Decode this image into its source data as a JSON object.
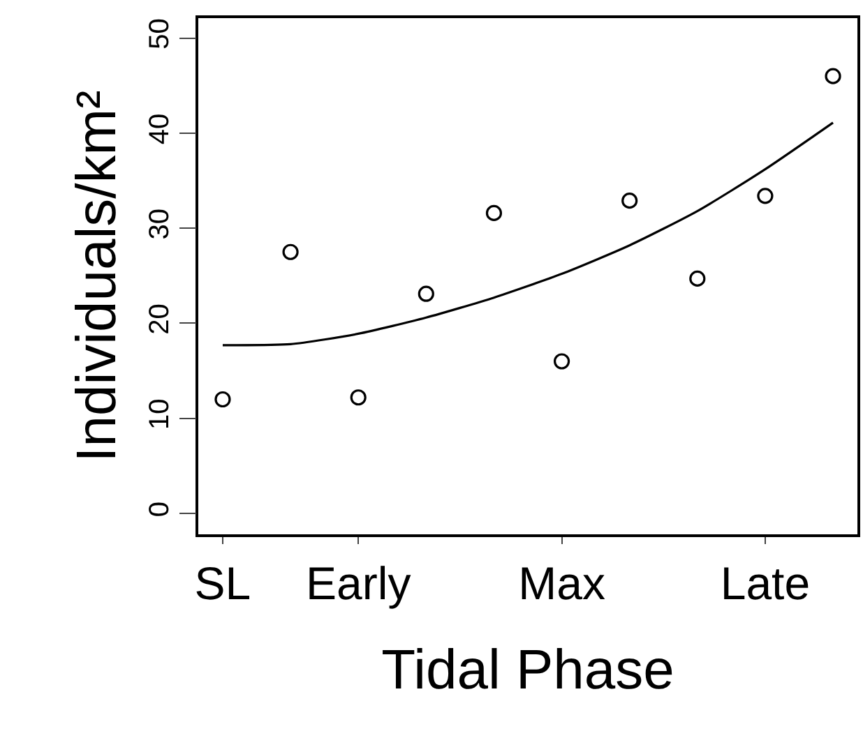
{
  "chart_data": {
    "type": "scatter",
    "xlabel": "Tidal Phase",
    "ylabel": "Individuals/km²",
    "categories": [
      "SL",
      null,
      "Early",
      null,
      null,
      "Max",
      null,
      null,
      "Late",
      null
    ],
    "ylim": [
      -2.2,
      52.1
    ],
    "yticks": [
      0,
      10,
      20,
      30,
      40,
      50
    ],
    "legend": false,
    "series": [
      {
        "marker": "circle",
        "color": "#000000",
        "values": [
          12.0,
          27.5,
          12.2,
          23.1,
          31.6,
          16.0,
          32.9,
          24.7,
          33.4,
          46.0
        ]
      },
      {
        "type": "line",
        "line_style": "solid",
        "color": "#000000",
        "values": [
          17.7,
          17.8,
          18.9,
          20.6,
          22.7,
          25.2,
          28.2,
          31.8,
          36.2,
          41.1
        ]
      }
    ]
  }
}
